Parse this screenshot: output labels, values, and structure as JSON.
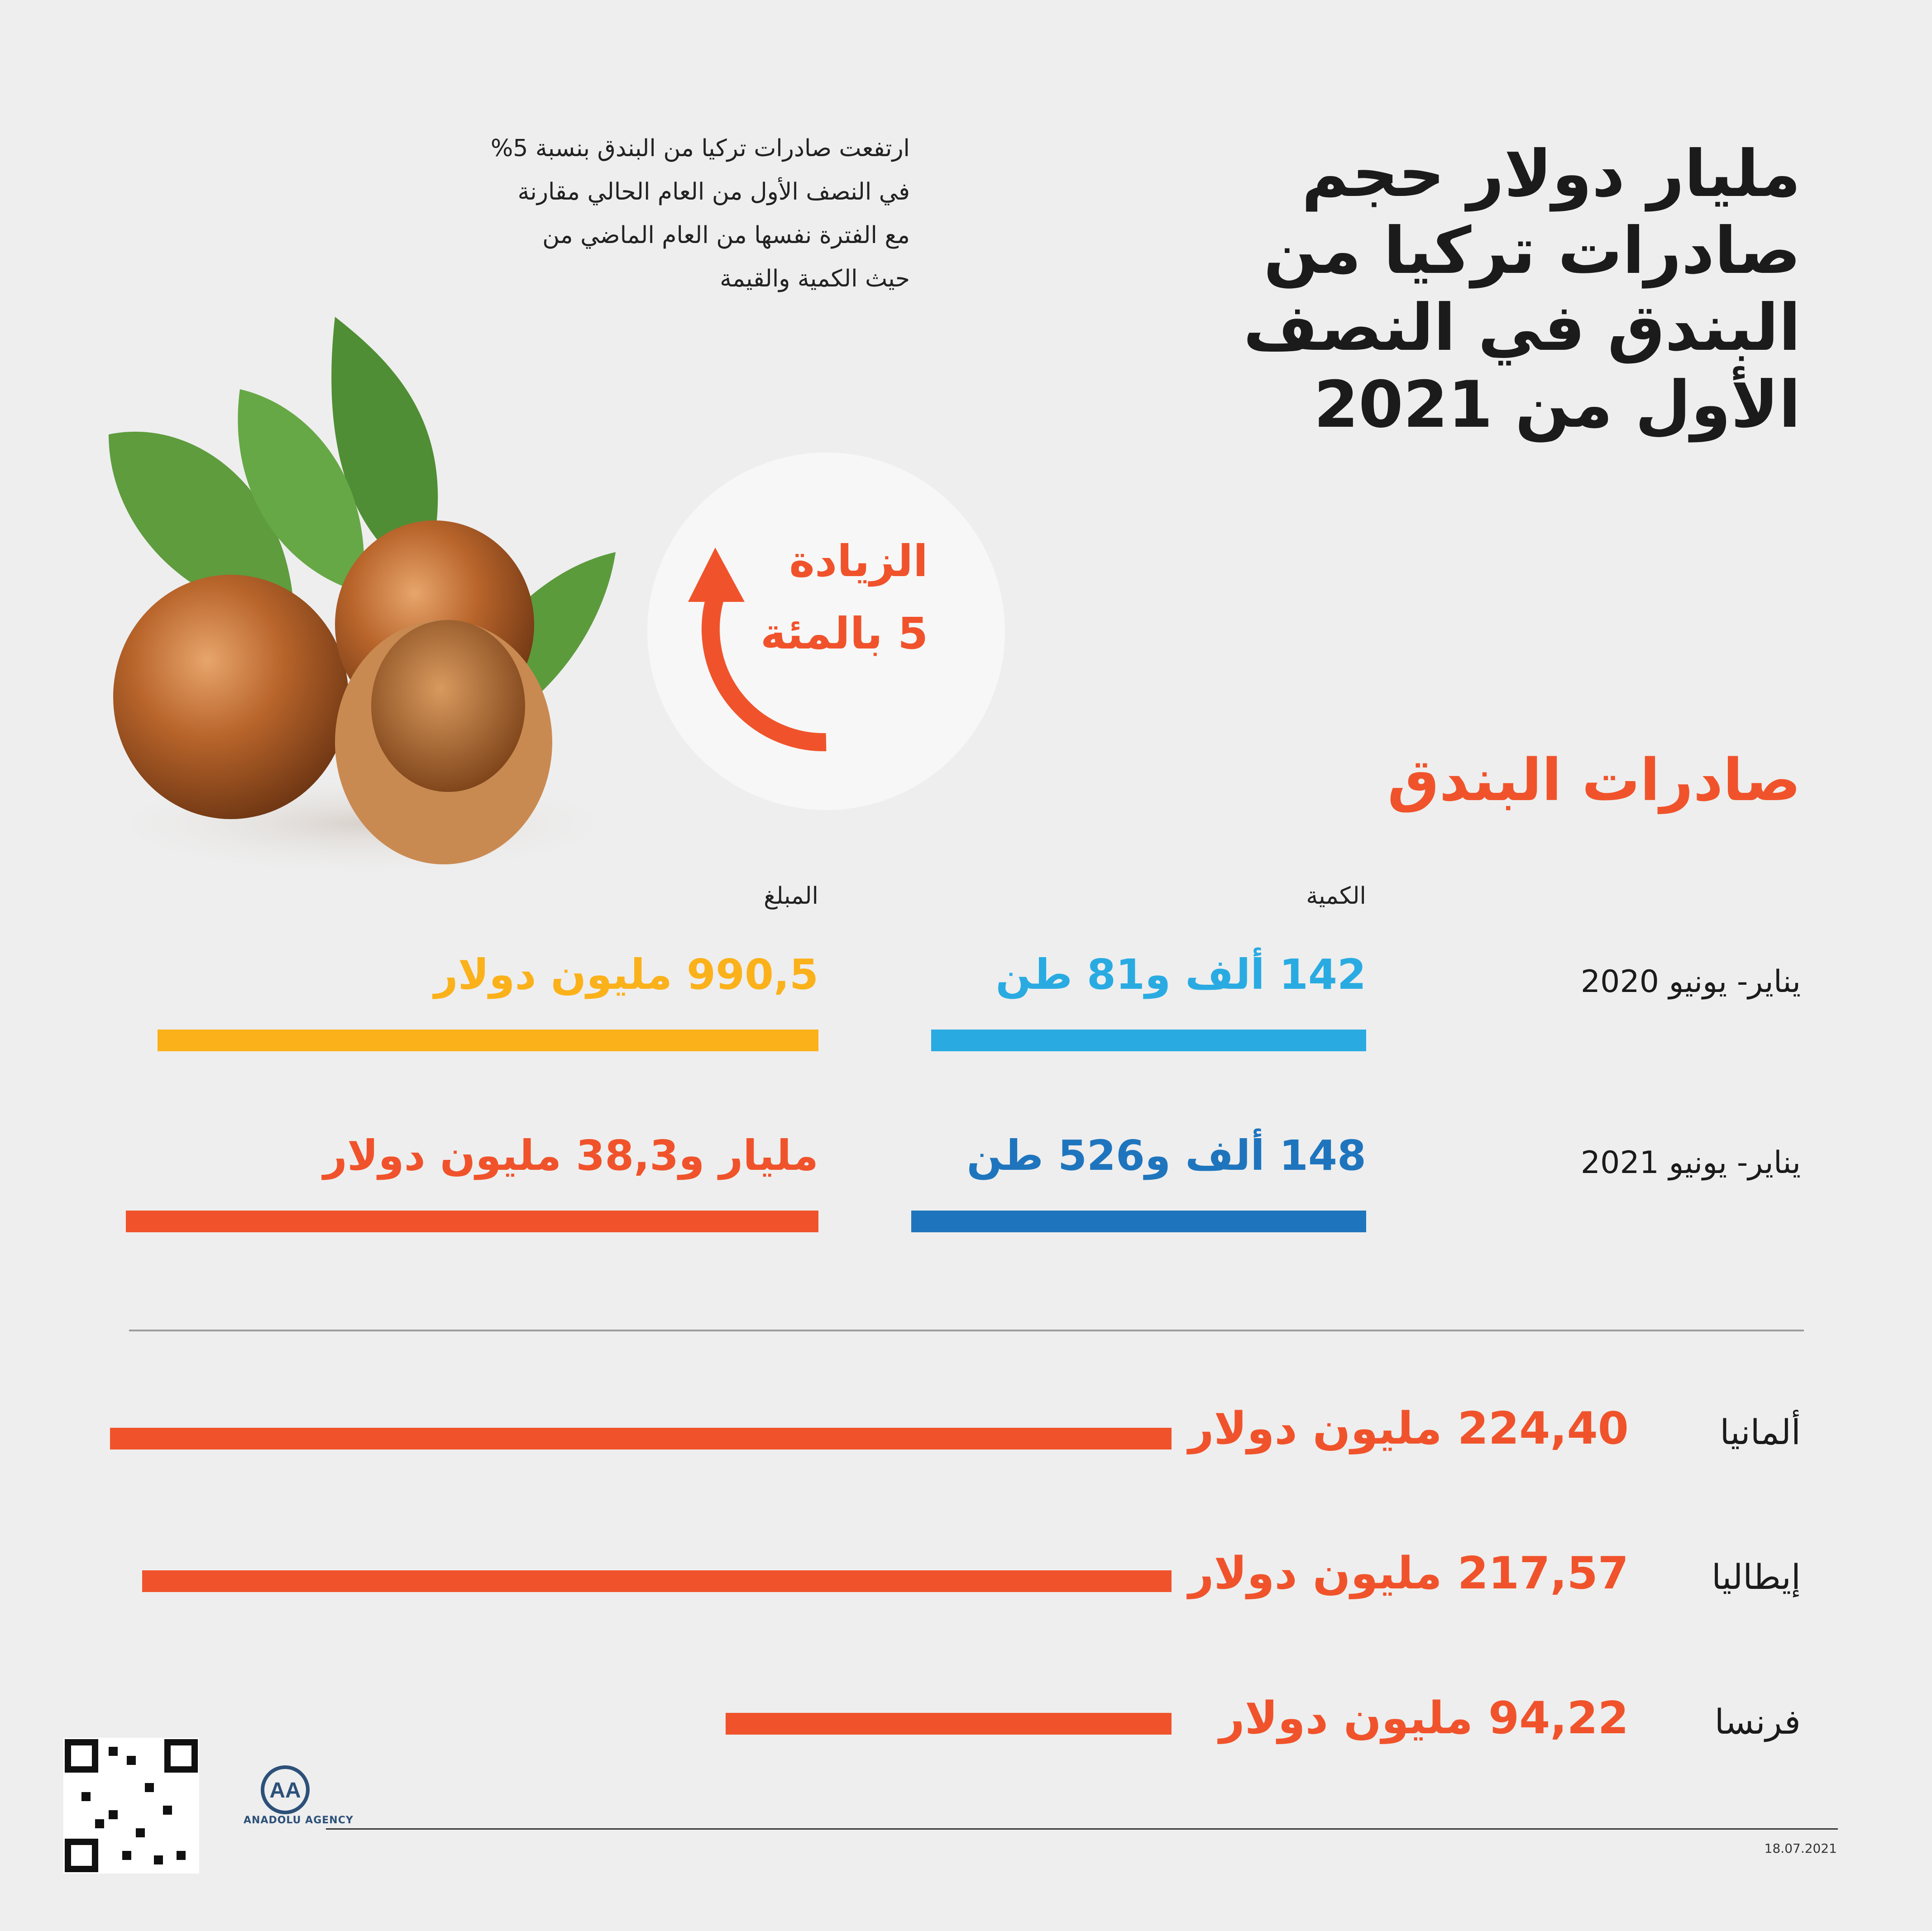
{
  "title_lines": [
    "مليار دولار حجم",
    "صادرات تركيا من",
    "البندق في النصف",
    "الأول من 2021"
  ],
  "intro_lines": [
    "ارتفعت صادرات تركيا من البندق بنسبة 5%",
    "في النصف الأول من العام الحالي مقارنة",
    "مع الفترة نفسها من العام الماضي من",
    "حيث الكمية والقيمة"
  ],
  "badge": {
    "line1": "الزيادة",
    "line2": "5 بالمئة"
  },
  "section_title": "صادرات البندق",
  "colors": {
    "orange": "#f0532b",
    "yellow": "#fbb11a",
    "light_blue": "#29abe2",
    "blue": "#1f75bd",
    "leaf": "#5a9a3a",
    "shell": "#a85a22"
  },
  "chart_data": [
    {
      "type": "bar",
      "title": "",
      "columns": [
        "الكمية",
        "المبلغ"
      ],
      "rows": [
        {
          "period": "يناير- يونيو 2020",
          "quantity_label": "142 ألف و81 طن",
          "amount_label": "990,5 مليون دولار"
        },
        {
          "period": "يناير- يونيو 2021",
          "quantity_label": "148 ألف و526 طن",
          "amount_label": "مليار و38,3 مليون  دولار"
        }
      ],
      "series": [
        {
          "name": "الكمية",
          "unit": "ton",
          "values": [
            142081,
            148526
          ],
          "colors": [
            "#29abe2",
            "#1f75bd"
          ]
        },
        {
          "name": "المبلغ",
          "unit": "million USD",
          "values": [
            990.5,
            1038.3
          ],
          "colors": [
            "#fbb11a",
            "#f0532b"
          ]
        }
      ]
    },
    {
      "type": "bar",
      "title": "",
      "categories": [
        "ألمانيا",
        "إيطاليا",
        "فرنسا"
      ],
      "values": [
        224.4,
        217.57,
        94.22
      ],
      "value_labels": [
        "224,40 مليون دولار",
        "217,57 مليون دولار",
        "94,22 مليون دولار"
      ],
      "unit": "million USD",
      "color": "#f0532b"
    }
  ],
  "footer": {
    "date": "18.07.2021",
    "logo": "ANADOLU AGENCY",
    "logo_mark": "AA"
  }
}
